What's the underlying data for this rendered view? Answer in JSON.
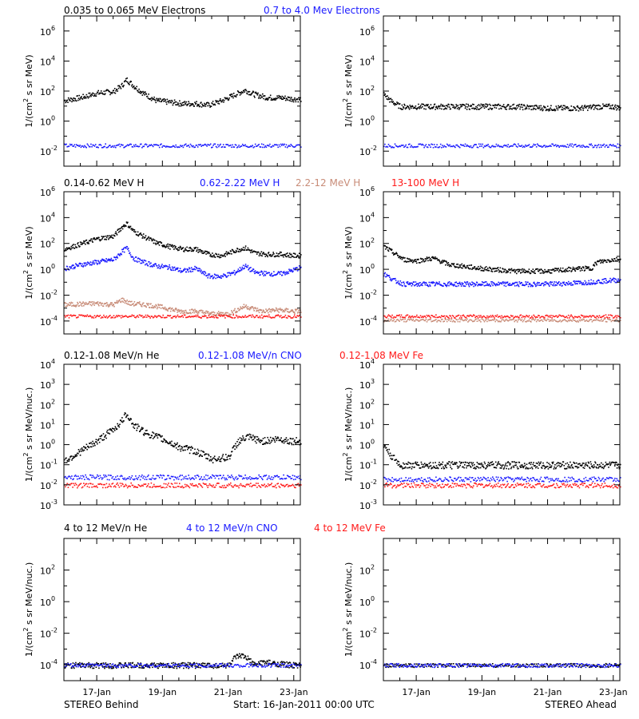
{
  "footer": {
    "left_label": "STEREO Behind",
    "center_label": "Start: 16-Jan-2011 00:00 UTC",
    "right_label": "STEREO Ahead"
  },
  "x_axis": {
    "ticks": [
      "17-Jan",
      "19-Jan",
      "21-Jan",
      "23-Jan"
    ],
    "tick_days": [
      1,
      3,
      5,
      7
    ],
    "xlim_days": [
      0,
      7.2
    ],
    "unit": "days since 16-Jan-2011 00:00 UTC"
  },
  "colors": {
    "black": "#000000",
    "blue": "#1a1aff",
    "tan": "#c88c78",
    "red": "#ff1a1a",
    "axis": "#000000"
  },
  "rows": [
    {
      "legend": [
        {
          "text": "0.035 to 0.065 MeV Electrons",
          "color": "black"
        },
        {
          "text": "0.7 to 4.0 Mev Electrons",
          "color": "blue"
        }
      ],
      "ylabel": "1/(cm² s sr MeV)",
      "ylabel_parts": [
        "1/(cm",
        "2",
        " s sr MeV)"
      ],
      "ylim_log": [
        -3,
        7
      ],
      "tick_exps": [
        -2,
        0,
        2,
        4,
        6
      ],
      "tick_format": "pow"
    },
    {
      "legend": [
        {
          "text": "0.14-0.62 MeV H",
          "color": "black"
        },
        {
          "text": "0.62-2.22 MeV H",
          "color": "blue"
        },
        {
          "text": "2.2-12 MeV H",
          "color": "tan"
        },
        {
          "text": "13-100 MeV H",
          "color": "red"
        }
      ],
      "ylabel": "1/(cm² s sr MeV)",
      "ylabel_parts": [
        "1/(cm",
        "2",
        " s sr MeV)"
      ],
      "ylim_log": [
        -5,
        6
      ],
      "tick_exps": [
        -4,
        -2,
        0,
        2,
        4,
        6
      ],
      "tick_format": "pow"
    },
    {
      "legend": [
        {
          "text": "0.12-1.08 MeV/n He",
          "color": "black"
        },
        {
          "text": "0.12-1.08 MeV/n CNO",
          "color": "blue"
        },
        {
          "text": "0.12-1.08 MeV Fe",
          "color": "red"
        }
      ],
      "ylabel": "1/(cm² s sr MeV/nuc.)",
      "ylabel_parts": [
        "1/(cm",
        "2",
        " s sr MeV/nuc.)"
      ],
      "ylim_log": [
        -3,
        4
      ],
      "tick_exps": [
        -3,
        -2,
        -1,
        0,
        1,
        2,
        3,
        4
      ],
      "tick_format": "pow"
    },
    {
      "legend": [
        {
          "text": "4 to 12 MeV/n He",
          "color": "black"
        },
        {
          "text": "4 to 12 MeV/n CNO",
          "color": "blue"
        },
        {
          "text": "4 to 12 MeV Fe",
          "color": "red"
        }
      ],
      "ylabel": "1/(cm² s sr MeV/nuc.)",
      "ylabel_parts": [
        "1/(cm",
        "2",
        " s sr MeV/nuc.)"
      ],
      "ylim_log": [
        -5,
        4
      ],
      "tick_exps": [
        -4,
        -2,
        0,
        2
      ],
      "tick_format": "pow"
    }
  ],
  "chart_data": [
    {
      "type": "scatter",
      "panel": "row1-behind",
      "yscale": "log",
      "ylim_log": [
        -3,
        7
      ],
      "series": [
        {
          "name": "0.035 to 0.065 MeV Electrons",
          "color": "black",
          "x": [
            0,
            0.5,
            1.0,
            1.5,
            1.75,
            1.9,
            2.1,
            2.4,
            2.8,
            3.2,
            3.6,
            4.0,
            4.4,
            4.8,
            5.2,
            5.5,
            5.8,
            6.2,
            6.6,
            7.0,
            7.2
          ],
          "log_y": [
            1.4,
            1.6,
            1.9,
            2.0,
            2.4,
            2.8,
            2.4,
            1.9,
            1.4,
            1.3,
            1.2,
            1.2,
            1.1,
            1.4,
            1.8,
            2.1,
            1.8,
            1.6,
            1.6,
            1.5,
            1.5
          ]
        },
        {
          "name": "0.7 to 4.0 Mev Electrons",
          "color": "blue",
          "x": [
            0,
            7.2
          ],
          "log_y": [
            -1.6,
            -1.6
          ]
        }
      ]
    },
    {
      "type": "scatter",
      "panel": "row1-ahead",
      "yscale": "log",
      "ylim_log": [
        -3,
        7
      ],
      "series": [
        {
          "name": "0.035 to 0.065 MeV Electrons",
          "color": "black",
          "x": [
            0,
            0.2,
            0.5,
            1.0,
            2.0,
            3.0,
            4.0,
            5.0,
            6.0,
            6.5,
            7.0,
            7.2
          ],
          "log_y": [
            1.8,
            1.4,
            1.0,
            1.0,
            1.0,
            1.0,
            1.0,
            0.9,
            0.9,
            1.0,
            1.0,
            0.9
          ]
        },
        {
          "name": "0.7 to 4.0 Mev Electrons",
          "color": "blue",
          "x": [
            0,
            7.2
          ],
          "log_y": [
            -1.6,
            -1.6
          ]
        }
      ]
    },
    {
      "type": "scatter",
      "panel": "row2-behind",
      "yscale": "log",
      "ylim_log": [
        -5,
        6
      ],
      "series": [
        {
          "name": "0.14-0.62 MeV H",
          "color": "black",
          "x": [
            0,
            0.5,
            1.0,
            1.5,
            1.75,
            1.9,
            2.1,
            2.4,
            2.8,
            3.2,
            3.6,
            4.0,
            4.4,
            4.8,
            5.2,
            5.5,
            5.8,
            6.2,
            6.6,
            7.0,
            7.2
          ],
          "log_y": [
            1.6,
            2.0,
            2.4,
            2.6,
            3.3,
            3.6,
            3.0,
            2.6,
            2.1,
            1.8,
            1.6,
            1.6,
            1.2,
            1.1,
            1.5,
            1.7,
            1.3,
            1.2,
            1.2,
            1.1,
            1.1
          ]
        },
        {
          "name": "0.62-2.22 MeV H",
          "color": "blue",
          "x": [
            0,
            0.5,
            1.0,
            1.5,
            1.75,
            1.9,
            2.1,
            2.4,
            2.8,
            3.2,
            3.6,
            4.0,
            4.4,
            4.8,
            5.2,
            5.5,
            5.8,
            6.2,
            6.6,
            7.0,
            7.2
          ],
          "log_y": [
            0.1,
            0.4,
            0.6,
            0.8,
            1.4,
            1.7,
            0.9,
            0.6,
            0.3,
            0.2,
            -0.1,
            0.1,
            -0.5,
            -0.5,
            -0.2,
            0.3,
            -0.2,
            -0.3,
            -0.3,
            0.0,
            0.2
          ]
        },
        {
          "name": "2.2-12 MeV H",
          "color": "tan",
          "x": [
            0,
            1.0,
            1.5,
            1.75,
            2.0,
            2.5,
            3.0,
            3.5,
            4.0,
            4.5,
            5.0,
            5.5,
            6.0,
            6.5,
            7.0,
            7.2
          ],
          "log_y": [
            -2.7,
            -2.6,
            -2.7,
            -2.3,
            -2.6,
            -2.7,
            -2.9,
            -3.2,
            -3.2,
            -3.4,
            -3.4,
            -2.8,
            -3.2,
            -3.1,
            -3.2,
            -3.2
          ]
        },
        {
          "name": "13-100 MeV H",
          "color": "red",
          "x": [
            0,
            7.2
          ],
          "log_y": [
            -3.6,
            -3.6
          ]
        }
      ]
    },
    {
      "type": "scatter",
      "panel": "row2-ahead",
      "yscale": "log",
      "ylim_log": [
        -5,
        6
      ],
      "series": [
        {
          "name": "0.14-0.62 MeV H",
          "color": "black",
          "x": [
            0,
            0.3,
            0.6,
            1.0,
            1.5,
            2.0,
            3.0,
            4.0,
            5.0,
            6.0,
            6.3,
            6.5,
            7.0,
            7.2
          ],
          "log_y": [
            1.8,
            1.3,
            0.8,
            0.7,
            0.9,
            0.4,
            0.1,
            -0.1,
            -0.1,
            0.1,
            0.1,
            0.6,
            0.8,
            0.8
          ]
        },
        {
          "name": "0.62-2.22 MeV H",
          "color": "blue",
          "x": [
            0,
            0.3,
            0.6,
            1.0,
            2.0,
            3.0,
            4.0,
            5.0,
            6.0,
            6.5,
            7.0,
            7.2
          ],
          "log_y": [
            -0.3,
            -0.8,
            -1.1,
            -1.1,
            -1.1,
            -1.1,
            -1.1,
            -1.1,
            -1.0,
            -0.9,
            -0.8,
            -0.8
          ]
        },
        {
          "name": "2.2-12 MeV H",
          "color": "tan",
          "x": [
            0,
            7.2
          ],
          "log_y": [
            -3.9,
            -3.9
          ]
        },
        {
          "name": "13-100 MeV H",
          "color": "red",
          "x": [
            0,
            7.2
          ],
          "log_y": [
            -3.6,
            -3.6
          ]
        }
      ]
    },
    {
      "type": "scatter",
      "panel": "row3-behind",
      "yscale": "log",
      "ylim_log": [
        -3,
        4
      ],
      "series": [
        {
          "name": "0.12-1.08 MeV/n He",
          "color": "black",
          "x": [
            0,
            0.5,
            1.0,
            1.5,
            1.75,
            1.9,
            2.1,
            2.5,
            3.0,
            3.5,
            4.0,
            4.5,
            5.0,
            5.3,
            5.6,
            6.0,
            6.5,
            7.0,
            7.2
          ],
          "log_y": [
            -0.8,
            -0.3,
            0.2,
            0.8,
            1.2,
            1.6,
            1.0,
            0.6,
            0.3,
            -0.1,
            -0.3,
            -0.7,
            -0.6,
            0.2,
            0.4,
            0.2,
            0.3,
            0.2,
            0.2
          ]
        },
        {
          "name": "0.12-1.08 MeV/n CNO",
          "color": "blue",
          "x": [
            0,
            7.2
          ],
          "log_y": [
            -1.6,
            -1.6
          ]
        },
        {
          "name": "0.12-1.08 MeV Fe",
          "color": "red",
          "x": [
            0,
            7.2
          ],
          "log_y": [
            -2.0,
            -2.0
          ]
        }
      ]
    },
    {
      "type": "scatter",
      "panel": "row3-ahead",
      "yscale": "log",
      "ylim_log": [
        -3,
        4
      ],
      "series": [
        {
          "name": "0.12-1.08 MeV/n He",
          "color": "black",
          "x": [
            0,
            0.2,
            0.5,
            1.0,
            2.0,
            3.0,
            4.0,
            5.0,
            6.0,
            7.0,
            7.2
          ],
          "log_y": [
            0.0,
            -0.5,
            -1.0,
            -1.0,
            -1.0,
            -1.0,
            -1.0,
            -1.0,
            -1.0,
            -1.0,
            -1.0
          ]
        },
        {
          "name": "0.12-1.08 MeV/n CNO",
          "color": "blue",
          "x": [
            0,
            7.2
          ],
          "log_y": [
            -1.7,
            -1.7
          ]
        },
        {
          "name": "0.12-1.08 MeV Fe",
          "color": "red",
          "x": [
            0,
            7.2
          ],
          "log_y": [
            -2.0,
            -2.0
          ]
        }
      ]
    },
    {
      "type": "scatter",
      "panel": "row4-behind",
      "yscale": "log",
      "ylim_log": [
        -5,
        4
      ],
      "series": [
        {
          "name": "4 to 12 MeV/n He",
          "color": "black",
          "x": [
            0,
            5.0,
            5.2,
            5.4,
            5.6,
            5.8,
            6.0,
            7.0,
            7.2
          ],
          "log_y": [
            -4.0,
            -4.0,
            -3.5,
            -3.4,
            -3.6,
            -4.0,
            -3.8,
            -4.0,
            -4.0
          ]
        },
        {
          "name": "4 to 12 MeV/n CNO",
          "color": "blue",
          "x": [
            0,
            7.2
          ],
          "log_y": [
            -4.0,
            -4.0
          ]
        }
      ]
    },
    {
      "type": "scatter",
      "panel": "row4-ahead",
      "yscale": "log",
      "ylim_log": [
        -5,
        4
      ],
      "series": [
        {
          "name": "4 to 12 MeV/n He",
          "color": "black",
          "x": [
            0,
            7.2
          ],
          "log_y": [
            -4.0,
            -4.0
          ]
        },
        {
          "name": "4 to 12 MeV/n CNO",
          "color": "blue",
          "x": [
            0,
            7.2
          ],
          "log_y": [
            -4.0,
            -4.0
          ]
        }
      ]
    }
  ]
}
